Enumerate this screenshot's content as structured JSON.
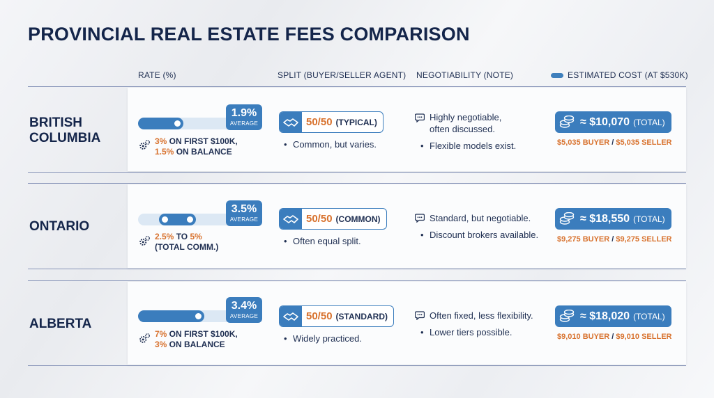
{
  "title": "PROVINCIAL REAL ESTATE FEES COMPARISON",
  "headers": {
    "rate": "RATE (%)",
    "split": "SPLIT (BUYER/SELLER AGENT)",
    "negotiability": "NEGOTIABILITY (NOTE)",
    "cost": "ESTIMATED COST (AT $530K)"
  },
  "colors": {
    "accent": "#3b7dbd",
    "highlight": "#d8722e",
    "text": "#14254a",
    "track": "#dce8f4"
  },
  "icons": {
    "gear": "gear-icon",
    "handshake": "handshake-icon",
    "speech": "speech-bubble-icon",
    "coins": "coins-icon"
  },
  "chart_data": {
    "type": "table",
    "columns": [
      "RATE (%)",
      "SPLIT (BUYER/SELLER AGENT)",
      "NEGOTIABILITY (NOTE)",
      "ESTIMATED COST (AT $530K)"
    ],
    "rows": [
      {
        "region_line1": "BRITISH",
        "region_line2": "COLUMBIA",
        "rate_value": "1.9%",
        "rate_label": "AVERAGE",
        "rate_numeric": 1.9,
        "bar_fill_fraction": 0.43,
        "rate_desc_1_hi": "3%",
        "rate_desc_1_rest": " ON FIRST $100K,",
        "rate_desc_2_hi": "1.5%",
        "rate_desc_2_rest": " ON BALANCE",
        "split_num": "50/50",
        "split_label": "(TYPICAL)",
        "split_note": "Common, but varies.",
        "neg_line1": "Highly negotiable,",
        "neg_line2": "often discussed.",
        "neg_note": "Flexible models exist.",
        "cost_total": "≈ $10,070",
        "cost_total_label": "(TOTAL)",
        "cost_total_numeric": 10070,
        "buyer_cost": "$5,035 BUYER",
        "sep": " / ",
        "seller_cost": "$5,035 SELLER"
      },
      {
        "region_line1": "ONTARIO",
        "region_line2": "",
        "rate_value": "3.5%",
        "rate_label": "AVERAGE",
        "rate_numeric": 3.5,
        "bar_range": [
          0.25,
          0.5
        ],
        "rate_desc_1_hi": "2.5%",
        "rate_desc_1_mid": " TO ",
        "rate_desc_1_hi2": "5%",
        "rate_desc_2_rest": "(TOTAL COMM.)",
        "split_num": "50/50",
        "split_label": "(COMMON)",
        "split_note": "Often equal split.",
        "neg_line1": "Standard, but negotiable.",
        "neg_note": "Discount brokers available.",
        "cost_total": "≈ $18,550",
        "cost_total_label": "(TOTAL)",
        "cost_total_numeric": 18550,
        "buyer_cost": "$9,275 BUYER",
        "sep": " / ",
        "seller_cost": "$9,275 SELLER"
      },
      {
        "region_line1": "ALBERTA",
        "region_line2": "",
        "rate_value": "3.4%",
        "rate_label": "AVERAGE",
        "rate_numeric": 3.4,
        "bar_fill_fraction": 0.63,
        "rate_desc_1_hi": "7%",
        "rate_desc_1_rest": " ON FIRST $100K,",
        "rate_desc_2_hi": "3%",
        "rate_desc_2_rest": " ON BALANCE",
        "split_num": "50/50",
        "split_label": "(STANDARD)",
        "split_note": "Widely practiced.",
        "neg_line1": "Often fixed, less flexibility.",
        "neg_note": "Lower tiers possible.",
        "cost_total": "≈ $18,020",
        "cost_total_label": "(TOTAL)",
        "cost_total_numeric": 18020,
        "buyer_cost": "$9,010 BUYER",
        "sep": " / ",
        "seller_cost": "$9,010 SELLER"
      }
    ]
  }
}
